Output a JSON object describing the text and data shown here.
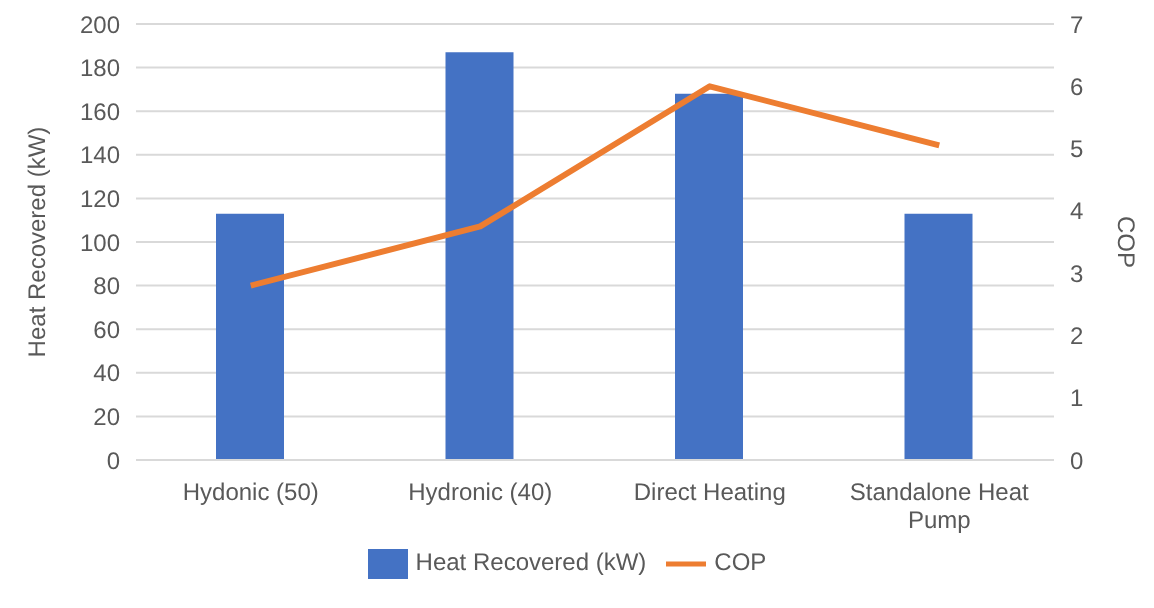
{
  "chart_data": {
    "type": "bar",
    "ylabel": "Heat Recovered (kW)",
    "y2label": "COP",
    "categories": [
      "Hydonic (50)",
      "Hydronic (40)",
      "Direct Heating",
      "Standalone Heat Pump"
    ],
    "series": [
      {
        "name": "Heat Recovered (kW)",
        "color": "#4472c4",
        "values": [
          113,
          187,
          168,
          113
        ]
      },
      {
        "name": "COP",
        "type": "line",
        "axis": "y2",
        "color": "#ed7d31",
        "values": [
          2.8,
          3.75,
          6.0,
          5.05
        ]
      }
    ],
    "ylim": [
      0,
      200
    ],
    "yticks": [
      0,
      20,
      40,
      60,
      80,
      100,
      120,
      140,
      160,
      180,
      200
    ],
    "y2lim": [
      0,
      7
    ],
    "y2ticks": [
      0,
      1,
      2,
      3,
      4,
      5,
      6,
      7
    ],
    "grid": "y",
    "legend": "bottom",
    "marker": "none",
    "line_style": "solid"
  }
}
